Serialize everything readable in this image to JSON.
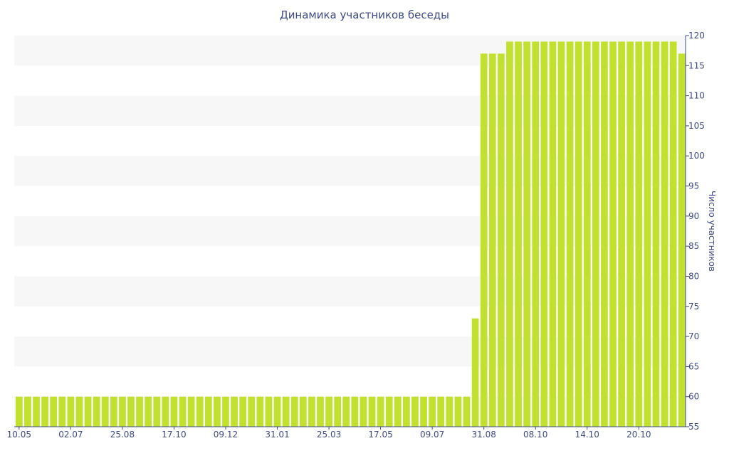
{
  "chart_data": {
    "type": "bar",
    "title": "Динамика участников беседы",
    "ylabel": "Число участников",
    "xlabel": "",
    "ylim": [
      55,
      120
    ],
    "yticks": [
      55,
      60,
      65,
      70,
      75,
      80,
      85,
      90,
      95,
      100,
      105,
      110,
      115,
      120
    ],
    "y_axis_side": "right",
    "grid": "alternating horizontal bands",
    "bar_color": "#c2e02e",
    "text_color": "#3e4a86",
    "band_color": "#f7f7f7",
    "x_tick_labels": [
      "10.05",
      "02.07",
      "25.08",
      "17.10",
      "09.12",
      "31.01",
      "25.03",
      "17.05",
      "09.07",
      "31.08",
      "08.10",
      "14.10",
      "20.10"
    ],
    "values": [
      60,
      60,
      60,
      60,
      60,
      60,
      60,
      60,
      60,
      60,
      60,
      60,
      60,
      60,
      60,
      60,
      60,
      60,
      60,
      60,
      60,
      60,
      60,
      60,
      60,
      60,
      60,
      60,
      60,
      60,
      60,
      60,
      60,
      60,
      60,
      60,
      60,
      60,
      60,
      60,
      60,
      60,
      60,
      60,
      60,
      60,
      60,
      60,
      60,
      60,
      60,
      60,
      60,
      73,
      117,
      117,
      117,
      119,
      119,
      119,
      119,
      119,
      119,
      119,
      119,
      119,
      119,
      119,
      119,
      119,
      119,
      119,
      119,
      119,
      119,
      119,
      119,
      117
    ]
  }
}
